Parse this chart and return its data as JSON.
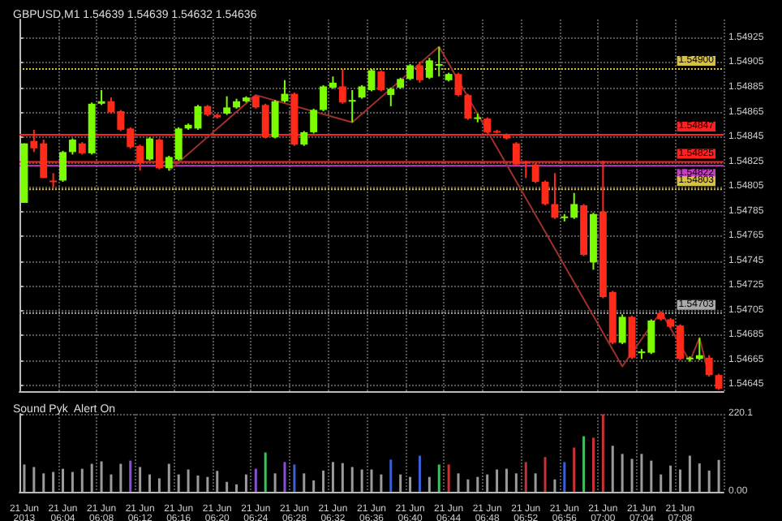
{
  "chart_data": [
    {
      "type": "candlestick",
      "title": "GBPUSD,M1 1.54639 1.54639 1.54632 1.54636",
      "categories": [
        null,
        null,
        null,
        null,
        null,
        null,
        null,
        null,
        null,
        null,
        null,
        null,
        null,
        null,
        null,
        null,
        null,
        null,
        null,
        null,
        null,
        null,
        null,
        null,
        null,
        null,
        null,
        null,
        null,
        null,
        null,
        null,
        null,
        null,
        null,
        null,
        null,
        null,
        null,
        null,
        null,
        null,
        null,
        null,
        null,
        null,
        null,
        null,
        null,
        null,
        null,
        null,
        null,
        null,
        null,
        null,
        null,
        null,
        null,
        null,
        null,
        null,
        null,
        null,
        null,
        null,
        null,
        null,
        null,
        null,
        null,
        null,
        null
      ],
      "ohlc": [
        [
          1.54792,
          1.5484,
          1.54792,
          1.5484
        ],
        [
          1.54842,
          1.54851,
          1.54833,
          1.54836
        ],
        [
          1.5484,
          1.54843,
          1.54812,
          1.54812
        ],
        [
          1.5481,
          1.54816,
          1.54804,
          1.54809
        ],
        [
          1.5481,
          1.54834,
          1.54809,
          1.54833
        ],
        [
          1.54833,
          1.54844,
          1.54831,
          1.54843
        ],
        [
          1.5484,
          1.54841,
          1.54831,
          1.54832
        ],
        [
          1.54832,
          1.54873,
          1.54831,
          1.54872
        ],
        [
          1.54872,
          1.54883,
          1.54871,
          1.54874
        ],
        [
          1.54874,
          1.54877,
          1.54864,
          1.54865
        ],
        [
          1.54866,
          1.54867,
          1.5485,
          1.54851
        ],
        [
          1.54852,
          1.54853,
          1.54836,
          1.54837
        ],
        [
          1.54838,
          1.54839,
          1.54818,
          1.54824
        ],
        [
          1.54827,
          1.54845,
          1.54826,
          1.54844
        ],
        [
          1.54843,
          1.54844,
          1.54819,
          1.5482
        ],
        [
          1.5482,
          1.5483,
          1.54818,
          1.54829
        ],
        [
          1.54827,
          1.54853,
          1.54826,
          1.54852
        ],
        [
          1.54852,
          1.54856,
          1.54851,
          1.54855
        ],
        [
          1.54852,
          1.54871,
          1.54851,
          1.5487
        ],
        [
          1.5487,
          1.54871,
          1.54862,
          1.54863
        ],
        [
          1.54863,
          1.54864,
          1.5486,
          1.54861
        ],
        [
          1.54864,
          1.54878,
          1.54863,
          1.54869
        ],
        [
          1.54869,
          1.54876,
          1.54868,
          1.54874
        ],
        [
          1.54874,
          1.54878,
          1.54873,
          1.54877
        ],
        [
          1.54878,
          1.54879,
          1.54868,
          1.54869
        ],
        [
          1.54871,
          1.54872,
          1.54844,
          1.54845
        ],
        [
          1.54845,
          1.54875,
          1.54844,
          1.54874
        ],
        [
          1.54874,
          1.54891,
          1.54873,
          1.5488
        ],
        [
          1.5488,
          1.54881,
          1.54838,
          1.54839
        ],
        [
          1.54839,
          1.5485,
          1.54838,
          1.54849
        ],
        [
          1.54849,
          1.54868,
          1.54848,
          1.54867
        ],
        [
          1.54867,
          1.54887,
          1.54866,
          1.54886
        ],
        [
          1.54885,
          1.54894,
          1.54884,
          1.54889
        ],
        [
          1.54886,
          1.549,
          1.54872,
          1.54873
        ],
        [
          1.54874,
          1.54883,
          1.54857,
          1.54875
        ],
        [
          1.54877,
          1.54887,
          1.54876,
          1.54886
        ],
        [
          1.54883,
          1.549,
          1.54882,
          1.54899
        ],
        [
          1.54898,
          1.54899,
          1.54882,
          1.54883
        ],
        [
          1.54879,
          1.54885,
          1.5487,
          1.54884
        ],
        [
          1.54885,
          1.54893,
          1.54884,
          1.54892
        ],
        [
          1.54892,
          1.54904,
          1.54891,
          1.54903
        ],
        [
          1.54903,
          1.54906,
          1.54889,
          1.54891
        ],
        [
          1.54893,
          1.54909,
          1.54892,
          1.54907
        ],
        [
          1.54903,
          1.54918,
          1.54894,
          1.54904
        ],
        [
          1.54891,
          1.54897,
          1.5489,
          1.54896
        ],
        [
          1.54896,
          1.54897,
          1.54878,
          1.54879
        ],
        [
          1.54879,
          1.5488,
          1.54859,
          1.5486
        ],
        [
          1.5486,
          1.54864,
          1.54857,
          1.54861
        ],
        [
          1.5486,
          1.54861,
          1.54848,
          1.54849
        ],
        [
          1.5485,
          1.54851,
          1.54848,
          1.54849
        ],
        [
          1.54847,
          1.54848,
          1.54843,
          1.54844
        ],
        [
          1.5484,
          1.54841,
          1.54822,
          1.54823
        ],
        [
          1.54825,
          1.54826,
          1.54812,
          1.54824
        ],
        [
          1.54823,
          1.54824,
          1.54808,
          1.54809
        ],
        [
          1.54809,
          1.5481,
          1.5479,
          1.54791
        ],
        [
          1.54791,
          1.54816,
          1.54779,
          1.5478
        ],
        [
          1.5478,
          1.54783,
          1.54777,
          1.54781
        ],
        [
          1.5478,
          1.548,
          1.54779,
          1.54791
        ],
        [
          1.5479,
          1.54791,
          1.54749,
          1.5475
        ],
        [
          1.54744,
          1.54784,
          1.54738,
          1.54783
        ],
        [
          1.54785,
          1.54826,
          1.54715,
          1.54716
        ],
        [
          1.5472,
          1.54721,
          1.54678,
          1.54679
        ],
        [
          1.54679,
          1.54702,
          1.54678,
          1.547
        ],
        [
          1.547,
          1.54701,
          1.54666,
          1.54667
        ],
        [
          1.54671,
          1.54674,
          1.54666,
          1.54672
        ],
        [
          1.54671,
          1.54698,
          1.5467,
          1.54697
        ],
        [
          1.54703,
          1.54704,
          1.54697,
          1.54698
        ],
        [
          1.54698,
          1.54699,
          1.54691,
          1.54692
        ],
        [
          1.54693,
          1.54694,
          1.54665,
          1.54666
        ],
        [
          1.54666,
          1.54668,
          1.54664,
          1.54667
        ],
        [
          1.54666,
          1.54683,
          1.54665,
          1.54669
        ],
        [
          1.54667,
          1.54669,
          1.54652,
          1.54653
        ],
        [
          1.54653,
          1.54654,
          1.54641,
          1.54642
        ]
      ],
      "series": [
        {
          "type": "line",
          "color": "#a0302a",
          "values": [
            null,
            null,
            null,
            null,
            null,
            null,
            null,
            null,
            null,
            null,
            null,
            null,
            null,
            null,
            null,
            1.54818,
            null,
            null,
            null,
            null,
            null,
            null,
            null,
            null,
            1.54879,
            null,
            null,
            null,
            null,
            null,
            null,
            null,
            null,
            null,
            1.54857,
            null,
            null,
            null,
            null,
            null,
            null,
            null,
            null,
            1.54918,
            null,
            null,
            null,
            null,
            null,
            null,
            null,
            null,
            null,
            null,
            null,
            null,
            null,
            null,
            null,
            null,
            null,
            null,
            1.5466,
            null,
            null,
            null,
            1.54704,
            null,
            null,
            1.54664,
            1.54683,
            1.54652,
            null
          ]
        }
      ],
      "ylim": [
        1.5464,
        1.5494
      ],
      "yticks": [
        1.54645,
        1.54665,
        1.54685,
        1.54705,
        1.54725,
        1.54745,
        1.54765,
        1.54785,
        1.54805,
        1.54825,
        1.54845,
        1.54865,
        1.54885,
        1.54905,
        1.54925
      ],
      "ref_lines": [
        {
          "axis": "y",
          "value": 1.54847,
          "label": "1.54847",
          "color": "#ff2020",
          "line_style": "solid"
        },
        {
          "axis": "y",
          "value": 1.54825,
          "label": "1.54825",
          "color": "#ff2020",
          "line_style": "solid"
        },
        {
          "axis": "y",
          "value": 1.54822,
          "label": "1.54822",
          "color": "#c040c0",
          "line_style": "solid"
        },
        {
          "axis": "y",
          "value": 1.549,
          "label": "1.54900",
          "color": "#d8c040",
          "line_style": "dotted"
        },
        {
          "axis": "y",
          "value": 1.54803,
          "label": "1.54803",
          "color": "#d8c040",
          "line_style": "dotted"
        },
        {
          "axis": "y",
          "value": 1.54703,
          "label": "1.54703",
          "color": "#aaaaaa",
          "line_style": "dotted"
        }
      ],
      "grid": true,
      "tick_labels": "y"
    },
    {
      "type": "bar",
      "title": "Sound Pyk  Alert On",
      "categories": [
        "21 Jun 2013",
        null,
        null,
        null,
        "21 Jun 06:04",
        null,
        null,
        null,
        "21 Jun 06:08",
        null,
        null,
        null,
        "21 Jun 06:12",
        null,
        null,
        null,
        "21 Jun 06:16",
        null,
        null,
        null,
        "21 Jun 06:20",
        null,
        null,
        null,
        "21 Jun 06:24",
        null,
        null,
        null,
        "21 Jun 06:28",
        null,
        null,
        null,
        "21 Jun 06:32",
        null,
        null,
        null,
        "21 Jun 06:36",
        null,
        null,
        null,
        "21 Jun 06:40",
        null,
        null,
        null,
        "21 Jun 06:44",
        null,
        null,
        null,
        "21 Jun 06:48",
        null,
        null,
        null,
        "21 Jun 06:52",
        null,
        null,
        null,
        "21 Jun 06:56",
        null,
        null,
        null,
        "21 Jun 07:00",
        null,
        null,
        null,
        "21 Jun 07:04",
        null,
        null,
        null,
        "21 Jun 07:08",
        null,
        null,
        null,
        null
      ],
      "values": [
        77,
        70,
        52,
        56,
        65,
        56,
        65,
        79,
        86,
        49,
        79,
        88,
        70,
        49,
        38,
        79,
        49,
        63,
        46,
        42,
        59,
        28,
        21,
        49,
        65,
        111,
        52,
        84,
        77,
        52,
        32,
        60,
        84,
        81,
        70,
        63,
        63,
        49,
        91,
        49,
        42,
        102,
        42,
        77,
        77,
        52,
        35,
        42,
        49,
        63,
        65,
        52,
        84,
        52,
        98,
        35,
        84,
        125,
        157,
        153,
        219,
        130,
        107,
        93,
        107,
        88,
        49,
        74,
        63,
        102,
        80,
        60,
        90
      ],
      "colors": [
        "#9a9a9a",
        "#9a9a9a",
        "#9a9a9a",
        "#9a9a9a",
        "#9a9a9a",
        "#9a9a9a",
        "#9a9a9a",
        "#9a9a9a",
        "#9a9a9a",
        "#9a9a9a",
        "#9a9a9a",
        "#8a4fd8",
        "#9a9a9a",
        "#9a9a9a",
        "#9a9a9a",
        "#9a9a9a",
        "#9a9a9a",
        "#9a9a9a",
        "#9a9a9a",
        "#9a9a9a",
        "#9a9a9a",
        "#9a9a9a",
        "#9a9a9a",
        "#9a9a9a",
        "#8a4fd8",
        "#3fbf5f",
        "#9a9a9a",
        "#8a4fd8",
        "#3a5fd8",
        "#9a9a9a",
        "#9a9a9a",
        "#9a9a9a",
        "#9a9a9a",
        "#9a9a9a",
        "#9a9a9a",
        "#9a9a9a",
        "#9a9a9a",
        "#9a9a9a",
        "#3a5fd8",
        "#9a9a9a",
        "#9a9a9a",
        "#3a5fd8",
        "#9a9a9a",
        "#3fbf5f",
        "#c83232",
        "#9a9a9a",
        "#9a9a9a",
        "#9a9a9a",
        "#9a9a9a",
        "#9a9a9a",
        "#9a9a9a",
        "#9a9a9a",
        "#c83232",
        "#9a9a9a",
        "#c83232",
        "#9a9a9a",
        "#3a5fd8",
        "#c83232",
        "#3fbf5f",
        "#c83232",
        "#c83232",
        "#9a9a9a",
        "#9a9a9a",
        "#9a9a9a",
        "#9a9a9a",
        "#9a9a9a",
        "#9a9a9a",
        "#9a9a9a",
        "#9a9a9a",
        "#9a9a9a",
        "#9a9a9a",
        "#9a9a9a",
        "#9a9a9a"
      ],
      "ylim": [
        0,
        220.1
      ],
      "yticks": [
        {
          "value": 0,
          "label": "0.00"
        },
        220.1
      ],
      "grid": true
    }
  ]
}
